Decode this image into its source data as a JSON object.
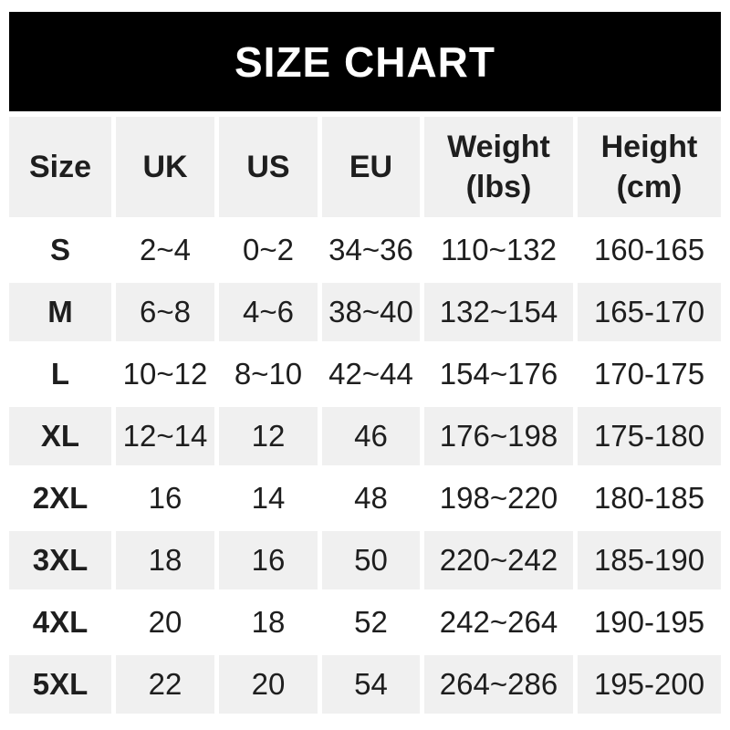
{
  "title": "SIZE CHART",
  "colors": {
    "banner_bg": "#000000",
    "banner_text": "#ffffff",
    "alt_row_bg": "#f0f0f0",
    "text": "#1e1e1e",
    "page_bg": "#ffffff"
  },
  "chart_data": {
    "type": "table",
    "title": "SIZE CHART",
    "columns": [
      {
        "key": "size",
        "label": "Size",
        "sub": ""
      },
      {
        "key": "uk",
        "label": "UK",
        "sub": ""
      },
      {
        "key": "us",
        "label": "US",
        "sub": ""
      },
      {
        "key": "eu",
        "label": "EU",
        "sub": ""
      },
      {
        "key": "weight_lbs",
        "label": "Weight",
        "sub": "(lbs)"
      },
      {
        "key": "height_cm",
        "label": "Height",
        "sub": "(cm)"
      }
    ],
    "rows": [
      {
        "size": "S",
        "uk": "2~4",
        "us": "0~2",
        "eu": "34~36",
        "weight_lbs": "110~132",
        "height_cm": "160-165"
      },
      {
        "size": "M",
        "uk": "6~8",
        "us": "4~6",
        "eu": "38~40",
        "weight_lbs": "132~154",
        "height_cm": "165-170"
      },
      {
        "size": "L",
        "uk": "10~12",
        "us": "8~10",
        "eu": "42~44",
        "weight_lbs": "154~176",
        "height_cm": "170-175"
      },
      {
        "size": "XL",
        "uk": "12~14",
        "us": "12",
        "eu": "46",
        "weight_lbs": "176~198",
        "height_cm": "175-180"
      },
      {
        "size": "2XL",
        "uk": "16",
        "us": "14",
        "eu": "48",
        "weight_lbs": "198~220",
        "height_cm": "180-185"
      },
      {
        "size": "3XL",
        "uk": "18",
        "us": "16",
        "eu": "50",
        "weight_lbs": "220~242",
        "height_cm": "185-190"
      },
      {
        "size": "4XL",
        "uk": "20",
        "us": "18",
        "eu": "52",
        "weight_lbs": "242~264",
        "height_cm": "190-195"
      },
      {
        "size": "5XL",
        "uk": "22",
        "us": "20",
        "eu": "54",
        "weight_lbs": "264~286",
        "height_cm": "195-200"
      }
    ]
  }
}
